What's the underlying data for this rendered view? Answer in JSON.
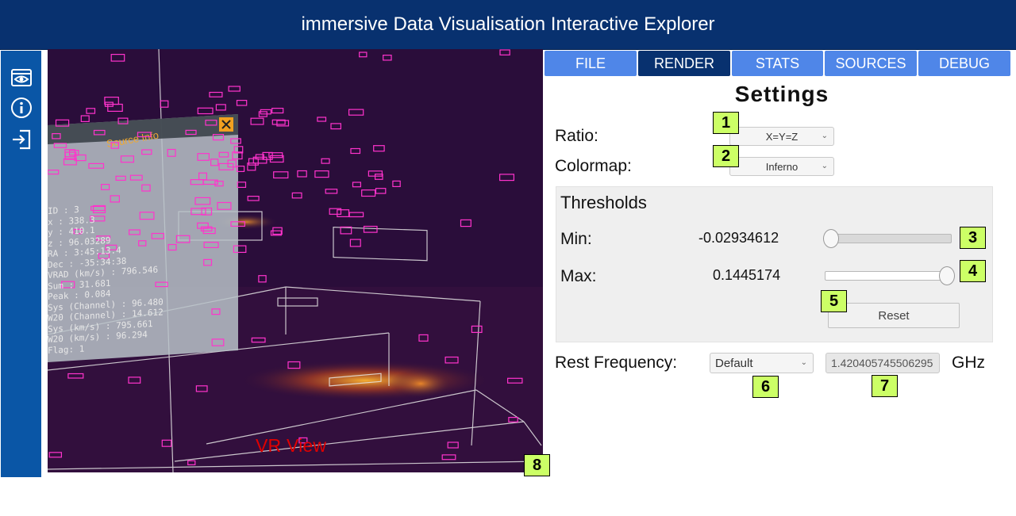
{
  "header": {
    "title": "immersive Data Visualisation Interactive Explorer"
  },
  "sidebar": {
    "icons": [
      "eye-icon",
      "info-icon",
      "exit-icon"
    ]
  },
  "vr_view": {
    "label": "VR View",
    "source_info_title": "Source Info",
    "source_info_lines": [
      "ID : 3",
      "x : 338.3",
      "y : 410.1",
      "z : 96.03289",
      "RA : 3:45:13.4",
      "Dec : -35:34:38",
      "VRAD (km/s) : 796.546",
      "Sum : 31.681",
      "Peak : 0.084",
      "Sys (Channel) : 96.480",
      "W20 (Channel) : 14.612",
      "Sys (km/s) : 795.661",
      "W20 (km/s) : 96.294",
      "Flag: 1"
    ]
  },
  "tabs": [
    {
      "label": "FILE",
      "active": false
    },
    {
      "label": "RENDER",
      "active": true
    },
    {
      "label": "STATS",
      "active": false
    },
    {
      "label": "SOURCES",
      "active": false
    },
    {
      "label": "DEBUG",
      "active": false
    }
  ],
  "settings": {
    "title": "Settings",
    "ratio_label": "Ratio:",
    "ratio_value": "X=Y=Z",
    "colormap_label": "Colormap:",
    "colormap_value": "Inferno",
    "thresholds": {
      "title": "Thresholds",
      "min_label": "Min:",
      "min_value": "-0.02934612",
      "min_slider_fraction": 0.0,
      "max_label": "Max:",
      "max_value": "0.1445174",
      "max_slider_fraction": 1.0,
      "reset_label": "Reset"
    },
    "rest_frequency_label": "Rest Frequency:",
    "rest_frequency_option": "Default",
    "rest_frequency_value": "1.420405745506295",
    "rest_frequency_unit": "GHz"
  },
  "badges": [
    "1",
    "2",
    "3",
    "4",
    "5",
    "6",
    "7",
    "8"
  ],
  "colors": {
    "header": "#08316f",
    "sidebar": "#0a56a6",
    "tab": "#4f86e8",
    "tab_active": "#08316f",
    "badge": "#ccff66",
    "vr_label": "#e00000"
  }
}
